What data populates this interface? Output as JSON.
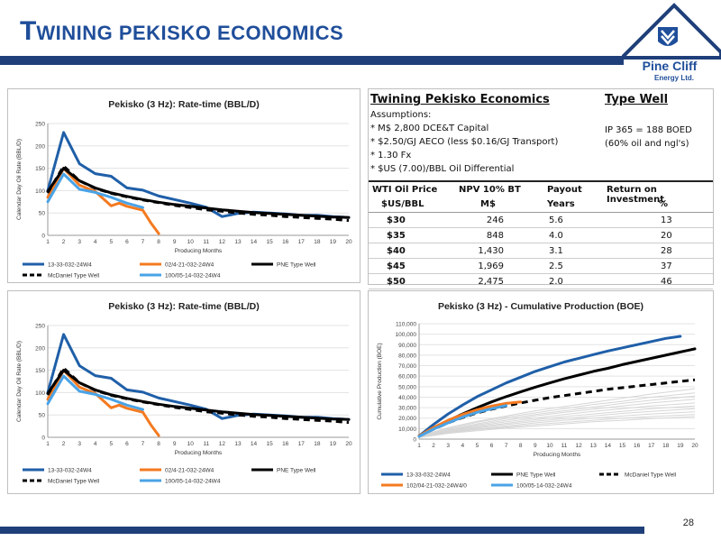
{
  "page": {
    "title_initial": "T",
    "title_rest": "WINING PEKISKO ECONOMICS",
    "logo_line1": "Pine Cliff",
    "logo_line2": "Energy Ltd.",
    "page_number": "28"
  },
  "colors": {
    "navy": "#1f3f7a",
    "title_blue": "#1f4e9a",
    "well_13_33": "#1f5fa8",
    "well_02_4": "#f47a20",
    "well_100_05": "#4aa3e6",
    "pne": "#000000",
    "mcdaniel": "#000000"
  },
  "economics": {
    "title": "Twining Pekisko Economics",
    "subtitle": "Type Well",
    "assumptions_label": "Assumptions:",
    "assumptions": [
      "* M$ 2,800 DCE&T Capital",
      "* $2.50/GJ AECO (less $0.16/GJ Transport)",
      "* 1.30 Fx",
      "* $US (7.00)/BBL Oil Differential"
    ],
    "ip_line1": "IP 365 = 188 BOED",
    "ip_line2": "(60% oil and ngl's)",
    "headers_row1": [
      "WTI Oil Price",
      "NPV 10% BT",
      "Payout",
      "Return on Investment"
    ],
    "headers_row2": [
      "$US/BBL",
      "M$",
      "Years",
      "%"
    ],
    "rows": [
      [
        "$30",
        "246",
        "5.6",
        "13"
      ],
      [
        "$35",
        "848",
        "4.0",
        "20"
      ],
      [
        "$40",
        "1,430",
        "3.1",
        "28"
      ],
      [
        "$45",
        "1,969",
        "2.5",
        "37"
      ],
      [
        "$50",
        "2,475",
        "2.0",
        "46"
      ]
    ]
  },
  "chart_data": [
    {
      "type": "line",
      "title": "Pekisko (3 Hz): Rate-time (BBL/D)",
      "xlabel": "Producing Months",
      "ylabel": "Calendar Day Oil Rate (BBL/D)",
      "xlim": [
        1,
        20
      ],
      "ylim": [
        0,
        250
      ],
      "yticks": [
        0,
        50,
        100,
        150,
        200,
        250
      ],
      "xticks": [
        1,
        2,
        3,
        4,
        5,
        6,
        7,
        8,
        9,
        10,
        11,
        12,
        13,
        14,
        15,
        16,
        17,
        18,
        19,
        20
      ],
      "legend_position": "bottom",
      "series": [
        {
          "name": "13-33-032-24W4",
          "color": "#1f5fa8",
          "dash": "solid",
          "width": 3,
          "x": [
            1,
            2,
            3,
            4,
            5,
            6,
            7,
            8,
            9,
            10,
            11,
            12,
            13,
            14,
            15,
            16,
            17,
            18,
            19,
            20
          ],
          "y": [
            100,
            230,
            160,
            138,
            132,
            106,
            101,
            88,
            80,
            72,
            63,
            42,
            49,
            52,
            50,
            48,
            45,
            45,
            42,
            40
          ]
        },
        {
          "name": "02/4-21-032-24W4",
          "color": "#f47a20",
          "dash": "solid",
          "width": 3,
          "x": [
            1,
            2,
            3,
            4,
            5,
            5.5,
            6,
            7,
            7.5,
            8
          ],
          "y": [
            85,
            150,
            112,
            98,
            66,
            72,
            65,
            56,
            28,
            4
          ]
        },
        {
          "name": "PNE Type Well",
          "color": "#000000",
          "dash": "solid",
          "width": 3,
          "x": [
            1,
            2,
            3,
            4,
            5,
            6,
            7,
            8,
            9,
            10,
            11,
            12,
            13,
            14,
            15,
            16,
            17,
            18,
            19,
            20
          ],
          "y": [
            98,
            150,
            122,
            106,
            95,
            87,
            80,
            74,
            69,
            65,
            61,
            57,
            54,
            51,
            49,
            47,
            45,
            43,
            41,
            40
          ]
        },
        {
          "name": "McDaniel Type Well",
          "color": "#000000",
          "dash": "dash",
          "width": 3,
          "x": [
            1,
            2,
            3,
            4,
            5,
            6,
            7,
            8,
            9,
            10,
            11,
            12,
            13,
            14,
            15,
            16,
            17,
            18,
            19,
            20
          ],
          "y": [
            95,
            155,
            122,
            105,
            94,
            86,
            79,
            73,
            67,
            62,
            57,
            54,
            50,
            47,
            45,
            42,
            40,
            38,
            36,
            33
          ]
        },
        {
          "name": "100/05-14-032-24W4",
          "color": "#4aa3e6",
          "dash": "solid",
          "width": 3,
          "x": [
            1,
            2,
            3,
            4,
            5,
            6,
            7
          ],
          "y": [
            75,
            137,
            103,
            96,
            85,
            72,
            62
          ]
        }
      ]
    },
    {
      "type": "line",
      "title": "Pekisko (3 Hz): Rate-time (BBL/D)",
      "xlabel": "Producing Months",
      "ylabel": "Calendar Day Oil Rate (BBL/D)",
      "xlim": [
        1,
        20
      ],
      "ylim": [
        0,
        250
      ],
      "yticks": [
        0,
        50,
        100,
        150,
        200,
        250
      ],
      "xticks": [
        1,
        2,
        3,
        4,
        5,
        6,
        7,
        8,
        9,
        10,
        11,
        12,
        13,
        14,
        15,
        16,
        17,
        18,
        19,
        20
      ],
      "legend_position": "bottom",
      "series": [
        {
          "name": "13-33-032-24W4",
          "color": "#1f5fa8",
          "dash": "solid",
          "width": 3,
          "x": [
            1,
            2,
            3,
            4,
            5,
            6,
            7,
            8,
            9,
            10,
            11,
            12,
            13,
            14,
            15,
            16,
            17,
            18,
            19,
            20
          ],
          "y": [
            100,
            230,
            160,
            138,
            132,
            106,
            101,
            88,
            80,
            72,
            63,
            42,
            49,
            52,
            50,
            48,
            45,
            45,
            42,
            40
          ]
        },
        {
          "name": "02/4-21-032-24W4",
          "color": "#f47a20",
          "dash": "solid",
          "width": 3,
          "x": [
            1,
            2,
            3,
            4,
            5,
            5.5,
            6,
            7,
            7.5,
            8
          ],
          "y": [
            85,
            150,
            112,
            98,
            66,
            72,
            65,
            56,
            28,
            4
          ]
        },
        {
          "name": "PNE Type Well",
          "color": "#000000",
          "dash": "solid",
          "width": 3,
          "x": [
            1,
            2,
            3,
            4,
            5,
            6,
            7,
            8,
            9,
            10,
            11,
            12,
            13,
            14,
            15,
            16,
            17,
            18,
            19,
            20
          ],
          "y": [
            98,
            150,
            122,
            106,
            95,
            87,
            80,
            74,
            69,
            65,
            61,
            57,
            54,
            51,
            49,
            47,
            45,
            43,
            41,
            40
          ]
        },
        {
          "name": "McDaniel Type Well",
          "color": "#000000",
          "dash": "dash",
          "width": 3,
          "x": [
            1,
            2,
            3,
            4,
            5,
            6,
            7,
            8,
            9,
            10,
            11,
            12,
            13,
            14,
            15,
            16,
            17,
            18,
            19,
            20
          ],
          "y": [
            95,
            155,
            122,
            105,
            94,
            86,
            79,
            73,
            67,
            62,
            57,
            54,
            50,
            47,
            45,
            42,
            40,
            38,
            36,
            33
          ]
        },
        {
          "name": "100/05-14-032-24W4",
          "color": "#4aa3e6",
          "dash": "solid",
          "width": 3,
          "x": [
            1,
            2,
            3,
            4,
            5,
            6,
            7
          ],
          "y": [
            75,
            137,
            103,
            96,
            85,
            72,
            62
          ]
        }
      ]
    },
    {
      "type": "line",
      "title": "Pekisko (3 Hz) - Cumulative Production (BOE)",
      "xlabel": "Producing Months",
      "ylabel": "Cumulative Production (BOE)",
      "xlim": [
        1,
        20
      ],
      "ylim": [
        0,
        110000
      ],
      "yticks": [
        0,
        10000,
        20000,
        30000,
        40000,
        50000,
        60000,
        70000,
        80000,
        90000,
        100000,
        110000
      ],
      "ytick_labels": [
        "0",
        "10,000",
        "20,000",
        "30,000",
        "40,000",
        "50,000",
        "60,000",
        "70,000",
        "80,000",
        "90,000",
        "100,000",
        "110,000"
      ],
      "xticks": [
        1,
        2,
        3,
        4,
        5,
        6,
        7,
        8,
        9,
        10,
        11,
        12,
        13,
        14,
        15,
        16,
        17,
        18,
        19,
        20
      ],
      "legend_position": "bottom",
      "background_curves": {
        "color": "#d6d6d6",
        "x": [
          1,
          3,
          5,
          7,
          9,
          11,
          13,
          15,
          17,
          20
        ],
        "curves": [
          [
            3000,
            11000,
            17000,
            22000,
            27000,
            31000,
            35000,
            39000,
            43000,
            48000
          ],
          [
            3000,
            10000,
            16000,
            21000,
            25000,
            29000,
            33000,
            36000,
            40000,
            44000
          ],
          [
            2500,
            9000,
            14500,
            19500,
            23500,
            27000,
            30500,
            34000,
            37000,
            41000
          ],
          [
            2500,
            8500,
            13500,
            18000,
            22000,
            25500,
            28500,
            31500,
            34500,
            38000
          ],
          [
            2000,
            8000,
            12500,
            16500,
            20000,
            23500,
            26500,
            29000,
            31500,
            34500
          ],
          [
            2000,
            7500,
            11500,
            15000,
            18500,
            21500,
            24000,
            26500,
            29000,
            31500
          ],
          [
            2000,
            7000,
            10500,
            14000,
            17000,
            19500,
            22000,
            24500,
            26500,
            29000
          ],
          [
            1500,
            6500,
            9500,
            12500,
            15500,
            18000,
            20000,
            22000,
            24000,
            26000
          ],
          [
            1500,
            6000,
            9000,
            11500,
            14000,
            16000,
            18000,
            20000,
            21500,
            23500
          ],
          [
            1500,
            5500,
            8000,
            10500,
            12500,
            14500,
            16500,
            18000,
            19500,
            21500
          ]
        ]
      },
      "series": [
        {
          "name": "13-33-032-24W4",
          "color": "#1f5fa8",
          "dash": "solid",
          "width": 3,
          "x": [
            1,
            2,
            3,
            4,
            5,
            6,
            7,
            8,
            9,
            10,
            11,
            12,
            13,
            14,
            15,
            16,
            17,
            18,
            19
          ],
          "y": [
            3000,
            14000,
            24000,
            32500,
            40500,
            47000,
            53500,
            59000,
            64500,
            69000,
            73500,
            77000,
            80500,
            84000,
            87000,
            90000,
            93000,
            96000,
            98000
          ]
        },
        {
          "name": "PNE Type Well",
          "color": "#000000",
          "dash": "solid",
          "width": 3,
          "x": [
            1,
            2,
            3,
            4,
            5,
            6,
            7,
            8,
            9,
            10,
            11,
            12,
            13,
            14,
            15,
            16,
            17,
            18,
            19,
            20
          ],
          "y": [
            3000,
            10500,
            17500,
            24000,
            30000,
            35500,
            40500,
            45000,
            49500,
            53500,
            57500,
            61000,
            64500,
            67500,
            71000,
            74000,
            77000,
            80000,
            83000,
            86000
          ]
        },
        {
          "name": "McDaniel Type Well",
          "color": "#000000",
          "dash": "dash",
          "width": 3,
          "x": [
            1,
            2,
            3,
            4,
            5,
            6,
            7,
            8,
            9,
            10,
            11,
            12,
            13,
            14,
            15,
            16,
            17,
            18,
            19,
            20
          ],
          "y": [
            3000,
            9500,
            15500,
            20500,
            25000,
            28500,
            31500,
            34500,
            37000,
            39500,
            41500,
            43500,
            45500,
            47500,
            49000,
            50500,
            52000,
            53500,
            55000,
            56500
          ]
        },
        {
          "name": "102/04-21-032-24W4/0",
          "color": "#f47a20",
          "dash": "solid",
          "width": 3,
          "x": [
            1,
            2,
            3,
            4,
            5,
            6,
            7,
            8
          ],
          "y": [
            3000,
            11000,
            18000,
            23500,
            28000,
            31500,
            34000,
            35500
          ]
        },
        {
          "name": "100/05-14-032-24W4",
          "color": "#4aa3e6",
          "dash": "solid",
          "width": 3,
          "x": [
            1,
            2,
            3,
            4,
            5,
            6,
            7
          ],
          "y": [
            2500,
            9500,
            15500,
            21000,
            25500,
            29000,
            32000
          ]
        }
      ]
    }
  ]
}
